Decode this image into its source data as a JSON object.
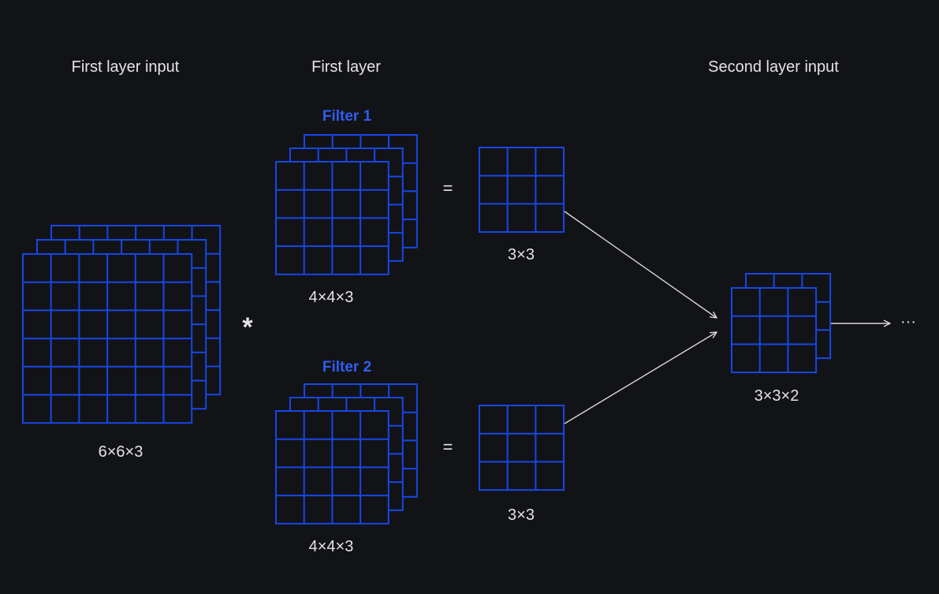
{
  "headings": {
    "input": "First layer input",
    "layer": "First layer",
    "output": "Second layer input"
  },
  "filters": [
    {
      "name": "Filter 1",
      "dims": "4×4×3",
      "result_dims": "3×3"
    },
    {
      "name": "Filter 2",
      "dims": "4×4×3",
      "result_dims": "3×3"
    }
  ],
  "input_dims": "6×6×3",
  "output_dims": "3×3×2",
  "operators": {
    "convolve": "*",
    "equals": "="
  },
  "continuation": "···",
  "colors": {
    "background": "#121317",
    "grid": "#1747e6",
    "text": "#e4e4e6",
    "arrow": "#d8d8da",
    "filter_label": "#2f5ef0"
  }
}
